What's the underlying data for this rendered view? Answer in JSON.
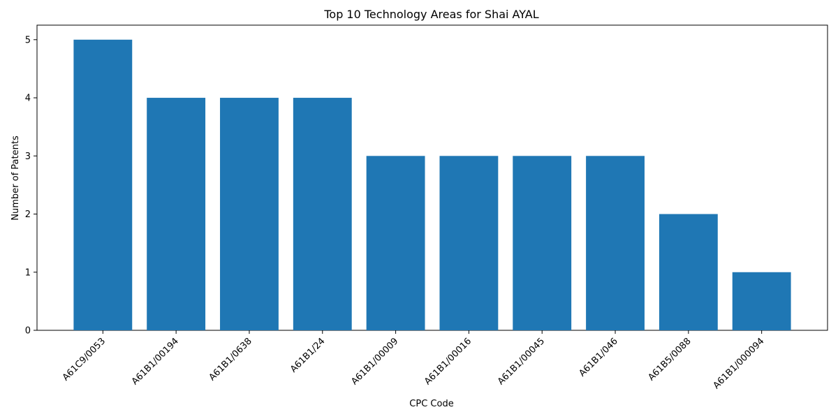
{
  "chart_data": {
    "type": "bar",
    "title": "Top 10 Technology Areas for Shai AYAL",
    "xlabel": "CPC Code",
    "ylabel": "Number of Patents",
    "categories": [
      "A61C9/0053",
      "A61B1/00194",
      "A61B1/0638",
      "A61B1/24",
      "A61B1/00009",
      "A61B1/00016",
      "A61B1/00045",
      "A61B1/046",
      "A61B5/0088",
      "A61B1/000094"
    ],
    "values": [
      5,
      4,
      4,
      4,
      3,
      3,
      3,
      3,
      2,
      1
    ],
    "ylim": [
      0,
      5.25
    ],
    "yticks": [
      0,
      1,
      2,
      3,
      4,
      5
    ],
    "grid": false,
    "bar_color": "#1f77b4"
  }
}
